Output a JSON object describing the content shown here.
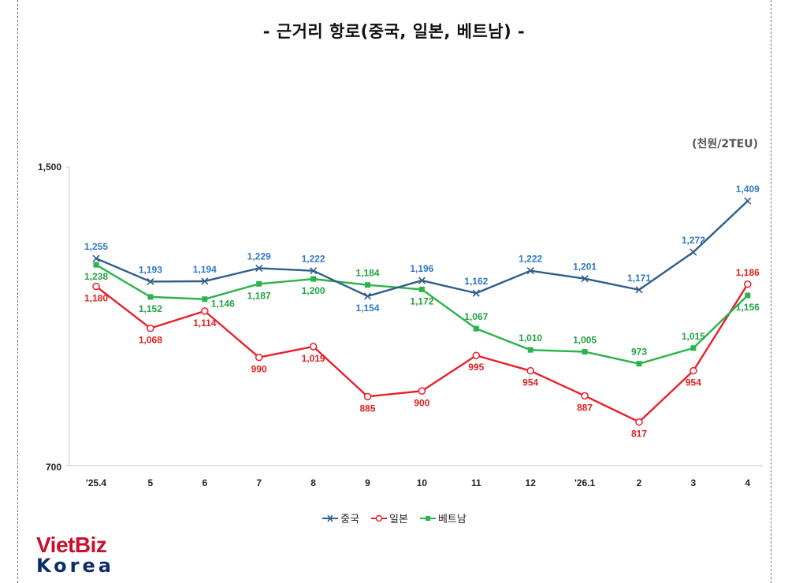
{
  "title": "-  근거리  항로(중국,  일본,  베트남)  -",
  "unit_label": "(천원/2TEU)",
  "logo": {
    "brand": "VietBiz",
    "sub": "Korea"
  },
  "chart_data": {
    "type": "line",
    "title": "-  근거리  항로(중국,  일본,  베트남)  -",
    "ylabel": "(천원/2TEU)",
    "xlabel": "",
    "categories": [
      "'25.4",
      "5",
      "6",
      "7",
      "8",
      "9",
      "10",
      "11",
      "12",
      "'26.1",
      "2",
      "3",
      "4"
    ],
    "ylim": [
      700,
      1500
    ],
    "yticks": [
      "1,500",
      "700"
    ],
    "grid": false,
    "legend_position": "bottom",
    "series": [
      {
        "name": "중국",
        "color": "#2e5f8a",
        "label_color": "#2f78c4",
        "marker": "x",
        "values": [
          1255,
          1193,
          1194,
          1229,
          1222,
          1154,
          1196,
          1162,
          1222,
          1201,
          1171,
          1272,
          1409
        ],
        "labels": [
          "1,255",
          "1,193",
          "1,194",
          "1,229",
          "1,222",
          "1,154",
          "1,196",
          "1,162",
          "1,222",
          "1,201",
          "1,171",
          "1,272",
          "1,409"
        ]
      },
      {
        "name": "일본",
        "color": "#e8202a",
        "label_color": "#e02020",
        "marker": "o",
        "values": [
          1180,
          1068,
          1114,
          990,
          1019,
          885,
          900,
          995,
          954,
          887,
          817,
          954,
          1186
        ],
        "labels": [
          "1,180",
          "1,068",
          "1,114",
          "990",
          "1,019",
          "885",
          "900",
          "995",
          "954",
          "887",
          "817",
          "954",
          "1,186"
        ]
      },
      {
        "name": "베트남",
        "color": "#2db34a",
        "label_color": "#22a344",
        "marker": "square",
        "values": [
          1238,
          1152,
          1146,
          1187,
          1200,
          1184,
          1172,
          1067,
          1010,
          1005,
          973,
          1015,
          1156
        ],
        "labels": [
          "1,238",
          "1,152",
          "1,146",
          "1,187",
          "1,200",
          "1,184",
          "1,172",
          "1,067",
          "1,010",
          "1,005",
          "973",
          "1,015",
          "1,156"
        ]
      }
    ]
  }
}
